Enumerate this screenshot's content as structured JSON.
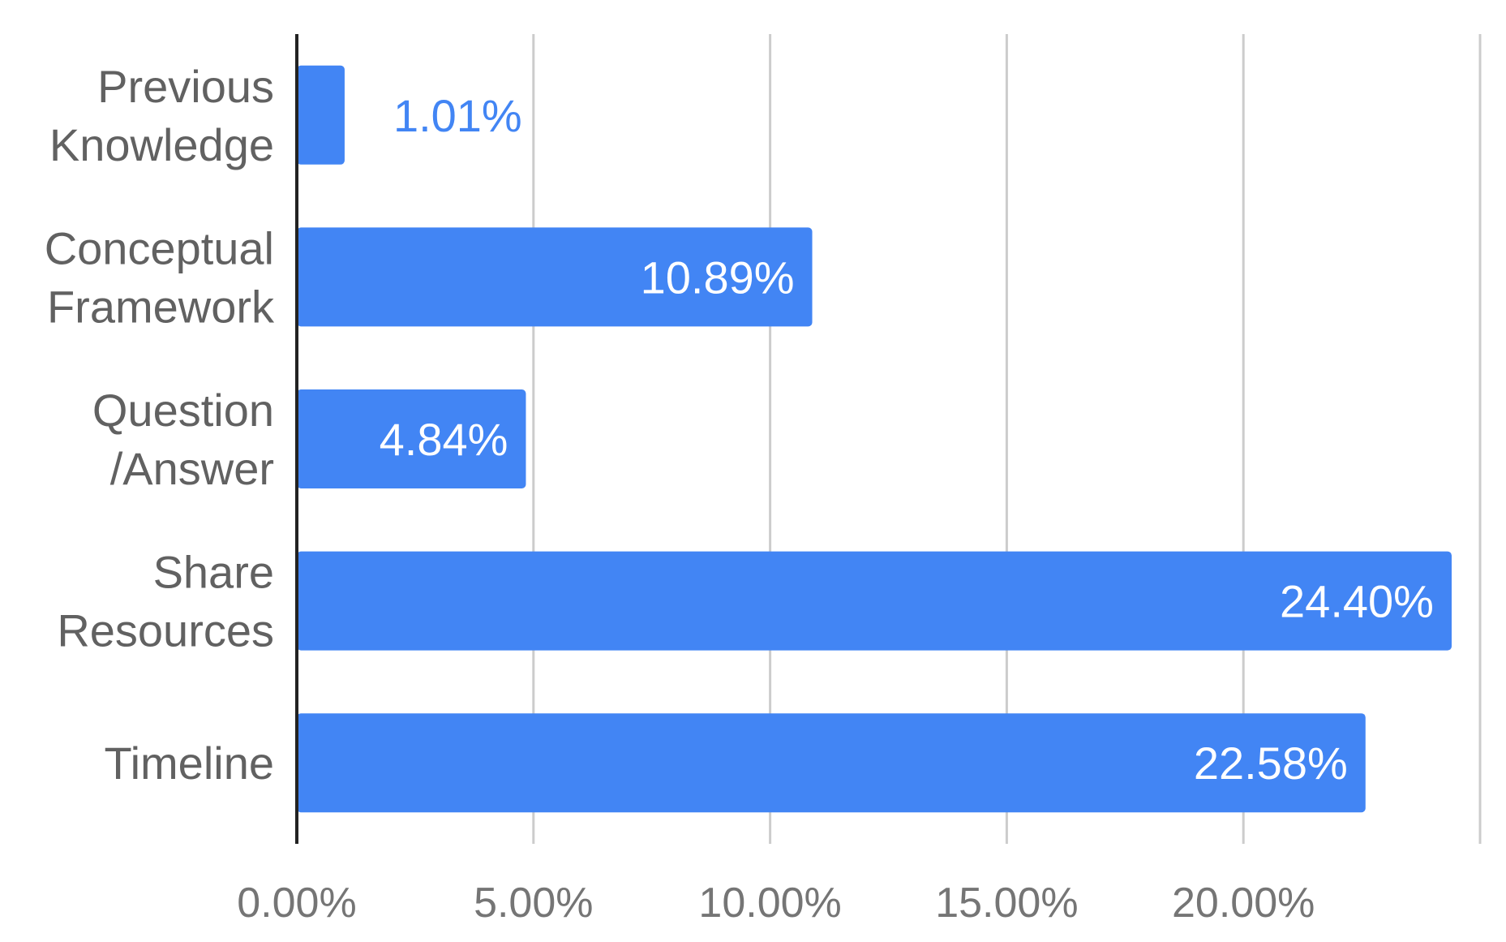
{
  "chart_data": {
    "type": "bar",
    "orientation": "horizontal",
    "title": "",
    "xlabel": "",
    "ylabel": "",
    "categories": [
      [
        "Previous",
        "Knowledge"
      ],
      [
        "Conceptual",
        "Framework"
      ],
      [
        "Question",
        "/Answer"
      ],
      [
        "Share",
        "Resources"
      ],
      [
        "Timeline"
      ]
    ],
    "values": [
      1.01,
      10.89,
      4.84,
      24.4,
      22.58
    ],
    "data_labels": [
      "1.01%",
      "10.89%",
      "4.84%",
      "24.40%",
      "22.58%"
    ],
    "x_ticks": [
      0,
      5,
      10,
      15,
      20,
      25
    ],
    "x_tick_labels": [
      "0.00%",
      "5.00%",
      "10.00%",
      "15.00%",
      "20.00%",
      ""
    ],
    "xlim": [
      0,
      25
    ],
    "grid": "vertical",
    "legend": "none",
    "colors": {
      "bar": "#4285f4",
      "label_inside": "#ffffff",
      "label_outside": "#4285f4",
      "grid": "#cccccc",
      "axis": "#222222"
    }
  }
}
